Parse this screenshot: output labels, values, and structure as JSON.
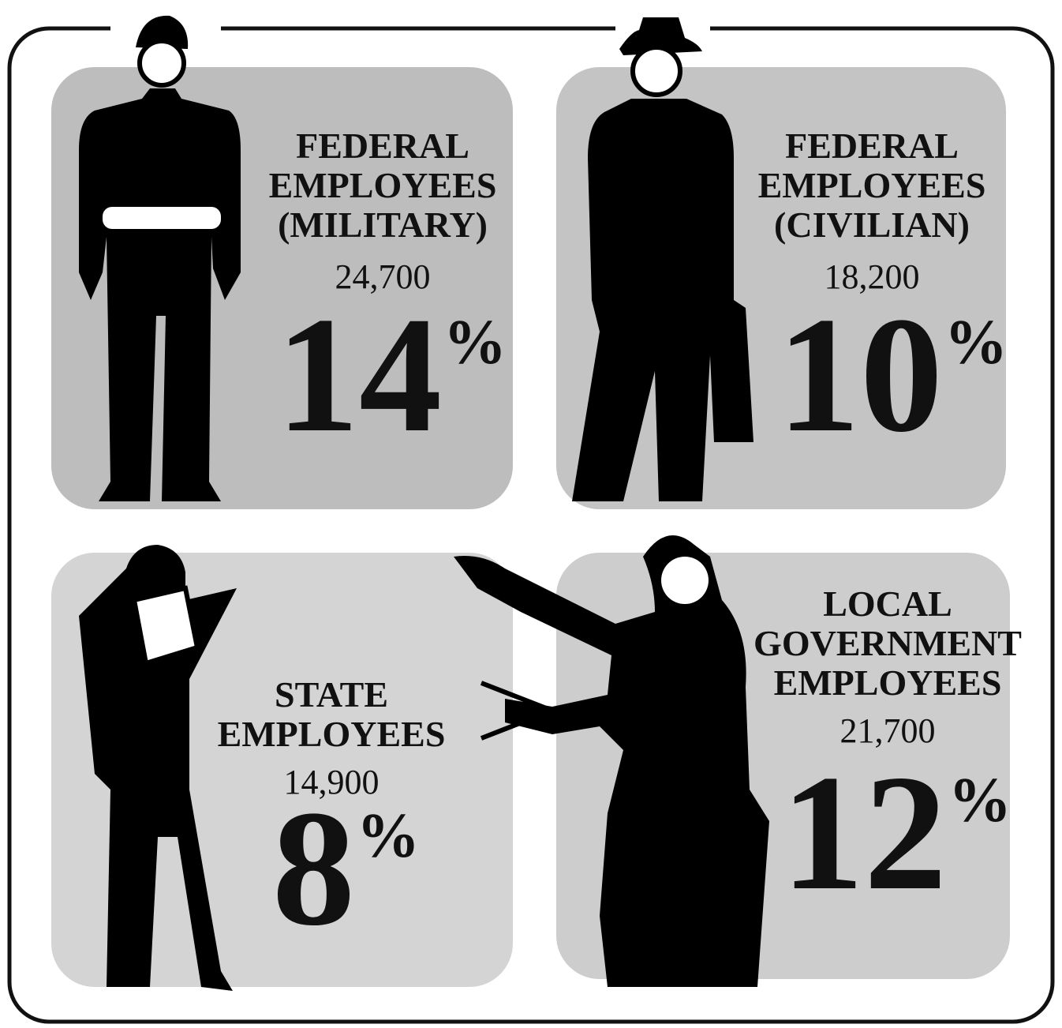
{
  "panels": [
    {
      "label_lines": [
        "FEDERAL",
        "EMPLOYEES",
        "(MILITARY)"
      ],
      "count": "24,700",
      "percent": "14",
      "percent_sign": "%"
    },
    {
      "label_lines": [
        "FEDERAL",
        "EMPLOYEES",
        "(CIVILIAN)"
      ],
      "count": "18,200",
      "percent": "10",
      "percent_sign": "%"
    },
    {
      "label_lines": [
        "STATE",
        "EMPLOYEES"
      ],
      "count": "14,900",
      "percent": "8",
      "percent_sign": "%"
    },
    {
      "label_lines": [
        "LOCAL",
        "GOVERNMENT",
        "EMPLOYEES"
      ],
      "count": "21,700",
      "percent": "12",
      "percent_sign": "%"
    }
  ]
}
